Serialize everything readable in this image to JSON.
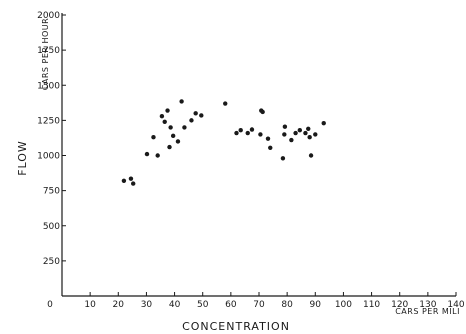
{
  "chart_data": {
    "type": "scatter",
    "title": "",
    "xlabel": "CONCENTRATION",
    "ylabel": "FLOW",
    "x_unit": "CARS PER MILI",
    "y_unit": "CARS PER HOUR",
    "xlim": [
      0,
      140
    ],
    "ylim": [
      0,
      2000
    ],
    "x_ticks": [
      0,
      10,
      20,
      30,
      40,
      50,
      60,
      70,
      80,
      90,
      100,
      110,
      120,
      130,
      140
    ],
    "x_tick_labels": [
      "0",
      "10",
      "20",
      "30",
      "40",
      "50",
      "60",
      "70",
      "80",
      "90",
      "100",
      "110",
      "120",
      "130",
      "140"
    ],
    "y_ticks": [
      250,
      500,
      750,
      1000,
      1250,
      1500,
      1750,
      2000
    ],
    "y_tick_labels": [
      "250",
      "500",
      "750",
      "1000",
      "1250",
      "1500",
      "1750",
      "2000"
    ],
    "grid": false,
    "points": [
      {
        "x": 22,
        "y": 820
      },
      {
        "x": 24.5,
        "y": 835
      },
      {
        "x": 25.3,
        "y": 800
      },
      {
        "x": 30.2,
        "y": 1010
      },
      {
        "x": 32.5,
        "y": 1130
      },
      {
        "x": 34,
        "y": 1000
      },
      {
        "x": 35.5,
        "y": 1280
      },
      {
        "x": 36.5,
        "y": 1240
      },
      {
        "x": 37.5,
        "y": 1320
      },
      {
        "x": 38.2,
        "y": 1060
      },
      {
        "x": 38.6,
        "y": 1200
      },
      {
        "x": 39.5,
        "y": 1140
      },
      {
        "x": 41.2,
        "y": 1100
      },
      {
        "x": 42.5,
        "y": 1385
      },
      {
        "x": 43.5,
        "y": 1200
      },
      {
        "x": 46,
        "y": 1250
      },
      {
        "x": 47.5,
        "y": 1300
      },
      {
        "x": 49.5,
        "y": 1285
      },
      {
        "x": 58,
        "y": 1370
      },
      {
        "x": 62,
        "y": 1160
      },
      {
        "x": 63.5,
        "y": 1180
      },
      {
        "x": 66,
        "y": 1160
      },
      {
        "x": 67.5,
        "y": 1185
      },
      {
        "x": 70.5,
        "y": 1150
      },
      {
        "x": 70.8,
        "y": 1320
      },
      {
        "x": 71.3,
        "y": 1310
      },
      {
        "x": 73.2,
        "y": 1120
      },
      {
        "x": 74,
        "y": 1055
      },
      {
        "x": 78.5,
        "y": 980
      },
      {
        "x": 79,
        "y": 1150
      },
      {
        "x": 79.2,
        "y": 1205
      },
      {
        "x": 81.5,
        "y": 1110
      },
      {
        "x": 83,
        "y": 1160
      },
      {
        "x": 84.5,
        "y": 1180
      },
      {
        "x": 86.5,
        "y": 1160
      },
      {
        "x": 87.5,
        "y": 1190
      },
      {
        "x": 88,
        "y": 1130
      },
      {
        "x": 88.5,
        "y": 1000
      },
      {
        "x": 90,
        "y": 1150
      },
      {
        "x": 93,
        "y": 1230
      }
    ],
    "colors": {
      "ink": "#1a1a1a",
      "background": "#ffffff"
    }
  }
}
